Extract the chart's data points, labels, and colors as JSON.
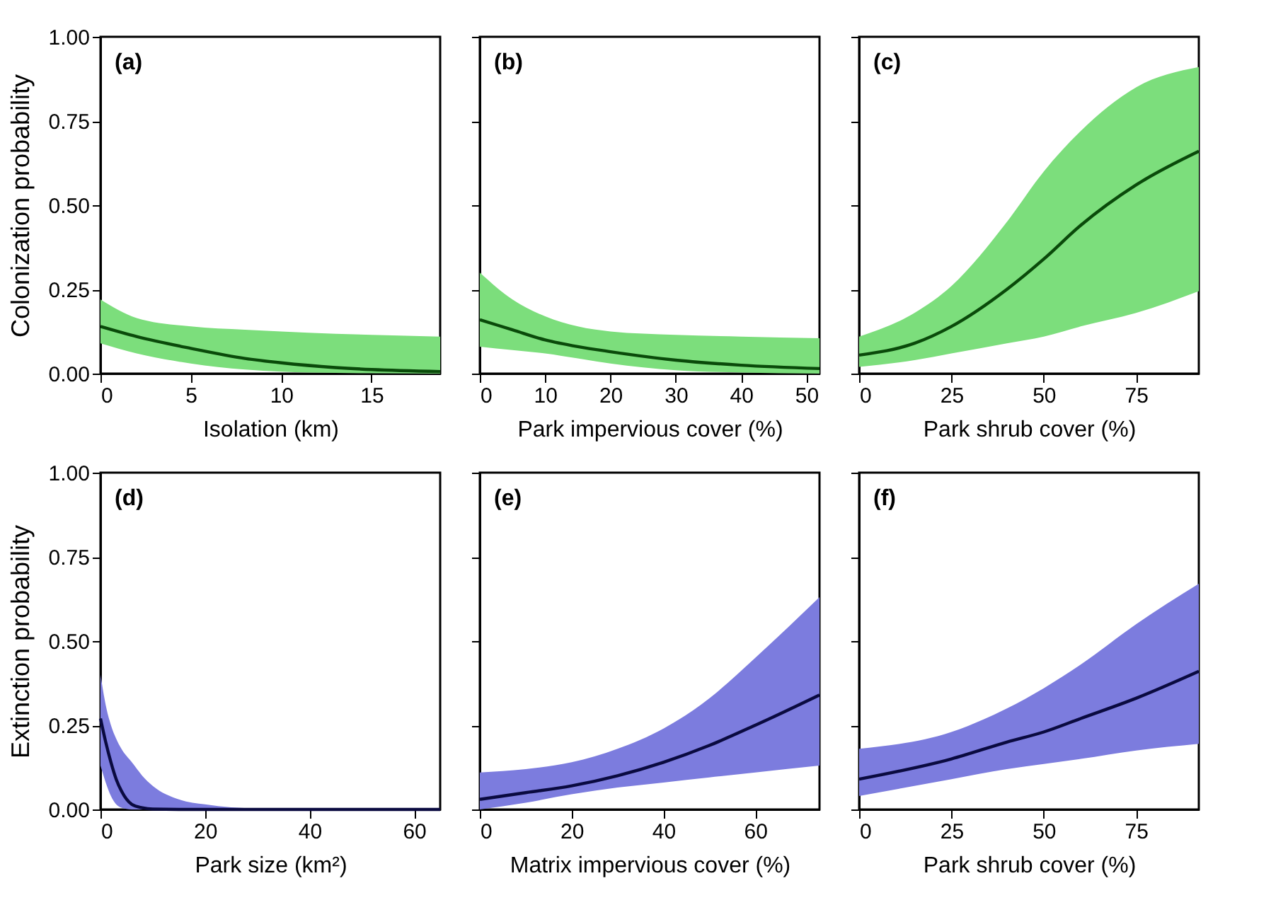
{
  "chart_data": [
    {
      "type": "line",
      "xlabel": "Isolation (km)",
      "ylabel": "Colonization probability",
      "annotations": [
        "(a)"
      ],
      "xlim": [
        0,
        18.8
      ],
      "xticks": [
        0,
        5,
        10,
        15
      ],
      "ylim": [
        0,
        1
      ],
      "yticks": [
        {
          "value": 0,
          "label": "0.00"
        },
        {
          "value": 0.25,
          "label": "0.25"
        },
        {
          "value": 0.5,
          "label": "0.50"
        },
        {
          "value": 0.75,
          "label": "0.75"
        },
        {
          "value": 1,
          "label": "1.00"
        }
      ],
      "grid": false,
      "series": [
        {
          "color": "#0a4a0a",
          "x": [
            0,
            2,
            5,
            8,
            10,
            13,
            15,
            18.8
          ],
          "values": [
            0.14,
            0.11,
            0.075,
            0.045,
            0.032,
            0.018,
            0.012,
            0.006
          ],
          "upper": [
            0.22,
            0.165,
            0.14,
            0.13,
            0.125,
            0.118,
            0.115,
            0.11
          ],
          "lower": [
            0.09,
            0.06,
            0.03,
            0.012,
            0.006,
            0.002,
            0.001,
            0
          ]
        }
      ]
    },
    {
      "type": "line",
      "xlabel": "Park impervious cover (%)",
      "annotations": [
        "(b)"
      ],
      "xlim": [
        0,
        52
      ],
      "xticks": [
        0,
        10,
        20,
        30,
        40,
        50
      ],
      "ylim": [
        0,
        1
      ],
      "tick_labels": "x",
      "grid": false,
      "series": [
        {
          "color": "#0a4a0a",
          "x": [
            0,
            5,
            10,
            15,
            20,
            30,
            40,
            52
          ],
          "values": [
            0.16,
            0.13,
            0.1,
            0.08,
            0.065,
            0.04,
            0.025,
            0.015
          ],
          "upper": [
            0.3,
            0.22,
            0.17,
            0.14,
            0.125,
            0.115,
            0.11,
            0.105
          ],
          "lower": [
            0.08,
            0.07,
            0.06,
            0.045,
            0.03,
            0.01,
            0.003,
            0
          ]
        }
      ]
    },
    {
      "type": "line",
      "xlabel": "Park shrub cover (%)",
      "annotations": [
        "(c)"
      ],
      "xlim": [
        0,
        92
      ],
      "xticks": [
        0,
        25,
        50,
        75
      ],
      "ylim": [
        0,
        1
      ],
      "tick_labels": "x",
      "grid": false,
      "series": [
        {
          "color": "#0a4a0a",
          "x": [
            0,
            15,
            25,
            40,
            50,
            60,
            75,
            92
          ],
          "values": [
            0.055,
            0.09,
            0.14,
            0.25,
            0.34,
            0.44,
            0.56,
            0.66
          ],
          "upper": [
            0.11,
            0.18,
            0.26,
            0.45,
            0.6,
            0.72,
            0.85,
            0.91
          ],
          "lower": [
            0.02,
            0.04,
            0.06,
            0.09,
            0.11,
            0.14,
            0.18,
            0.245
          ]
        }
      ]
    },
    {
      "type": "line",
      "xlabel": "Park size (km²)",
      "ylabel": "Extinction probability",
      "annotations": [
        "(d)"
      ],
      "xlim": [
        0,
        65
      ],
      "xticks": [
        0,
        20,
        40,
        60
      ],
      "ylim": [
        0,
        1
      ],
      "yticks": [
        {
          "value": 0,
          "label": "0.00"
        },
        {
          "value": 0.25,
          "label": "0.25"
        },
        {
          "value": 0.5,
          "label": "0.50"
        },
        {
          "value": 0.75,
          "label": "0.75"
        },
        {
          "value": 1,
          "label": "1.00"
        }
      ],
      "grid": false,
      "series": [
        {
          "color": "#0a0a40",
          "x": [
            0,
            1,
            2,
            3,
            4,
            6,
            8,
            10,
            15,
            20,
            30,
            65
          ],
          "values": [
            0.27,
            0.2,
            0.14,
            0.09,
            0.055,
            0.015,
            0.005,
            0.001,
            0,
            0,
            0,
            0
          ],
          "upper": [
            0.4,
            0.31,
            0.25,
            0.21,
            0.18,
            0.14,
            0.1,
            0.07,
            0.03,
            0.015,
            0.003,
            0
          ],
          "lower": [
            0.13,
            0.08,
            0.04,
            0.015,
            0.005,
            0,
            0,
            0,
            0,
            0,
            0,
            0
          ]
        }
      ]
    },
    {
      "type": "line",
      "xlabel": "Matrix impervious cover (%)",
      "annotations": [
        "(e)"
      ],
      "xlim": [
        0,
        74
      ],
      "xticks": [
        0,
        20,
        40,
        60
      ],
      "ylim": [
        0,
        1
      ],
      "tick_labels": "x",
      "grid": false,
      "series": [
        {
          "color": "#0a0a40",
          "x": [
            0,
            10,
            20,
            30,
            40,
            50,
            60,
            74
          ],
          "values": [
            0.03,
            0.05,
            0.07,
            0.1,
            0.14,
            0.19,
            0.25,
            0.34
          ],
          "upper": [
            0.11,
            0.12,
            0.14,
            0.18,
            0.24,
            0.33,
            0.45,
            0.63
          ],
          "lower": [
            0,
            0.02,
            0.045,
            0.065,
            0.08,
            0.095,
            0.11,
            0.13
          ]
        }
      ]
    },
    {
      "type": "line",
      "xlabel": "Park shrub cover (%)",
      "annotations": [
        "(f)"
      ],
      "xlim": [
        0,
        92
      ],
      "xticks": [
        0,
        25,
        50,
        75
      ],
      "ylim": [
        0,
        1
      ],
      "tick_labels": "x",
      "grid": false,
      "series": [
        {
          "color": "#0a0a40",
          "x": [
            0,
            25,
            40,
            50,
            60,
            75,
            92
          ],
          "values": [
            0.09,
            0.15,
            0.2,
            0.23,
            0.27,
            0.33,
            0.41
          ],
          "upper": [
            0.18,
            0.23,
            0.3,
            0.36,
            0.43,
            0.55,
            0.67
          ],
          "lower": [
            0.04,
            0.09,
            0.12,
            0.135,
            0.15,
            0.175,
            0.195
          ]
        }
      ]
    }
  ]
}
